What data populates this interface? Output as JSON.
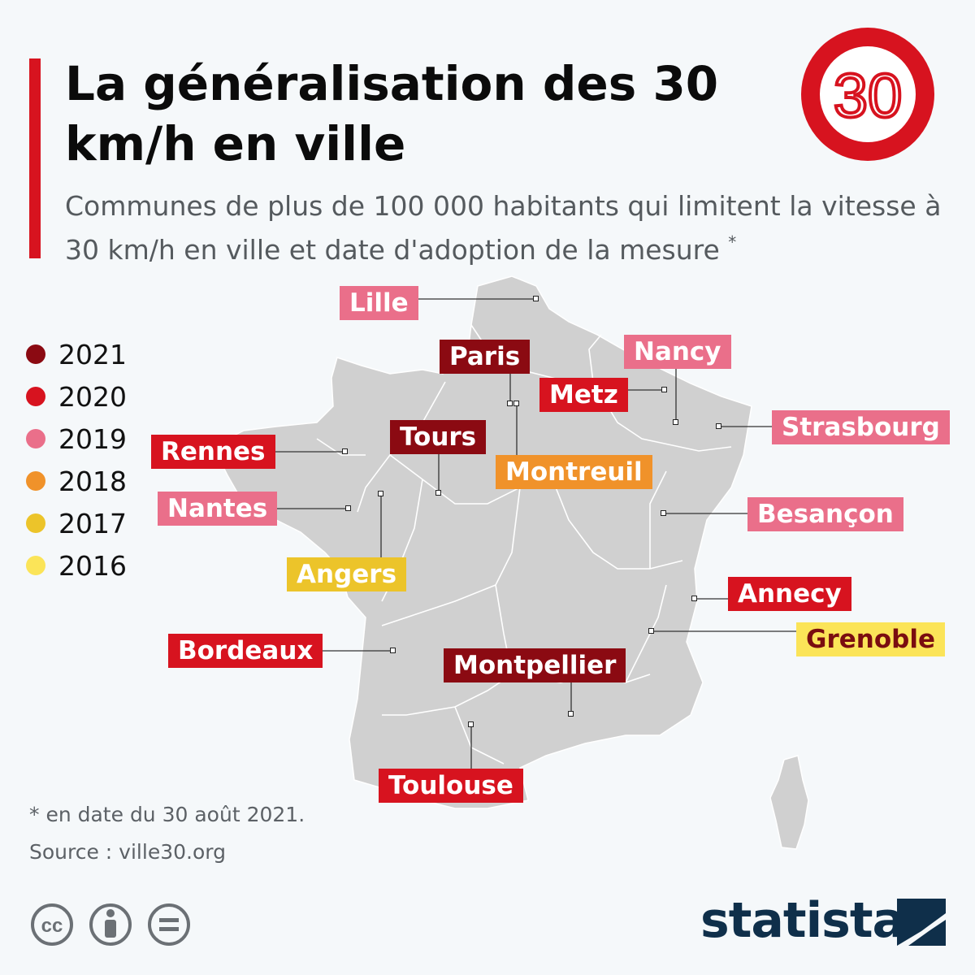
{
  "title": "La généralisation des 30 km/h en ville",
  "subtitle": "Communes de plus de 100 000 habitants qui limitent la vitesse à 30 km/h en ville et date d'adoption de la mesure",
  "subtitle_asterisk": "*",
  "speed_sign": {
    "value": "30"
  },
  "legend": [
    {
      "year": "2021",
      "color": "#8b0a12"
    },
    {
      "year": "2020",
      "color": "#d7131f"
    },
    {
      "year": "2019",
      "color": "#ea6f8a"
    },
    {
      "year": "2018",
      "color": "#f0922a"
    },
    {
      "year": "2017",
      "color": "#ecc42a"
    },
    {
      "year": "2016",
      "color": "#fbe458"
    }
  ],
  "cities": [
    {
      "name": "Lille",
      "year": "2019"
    },
    {
      "name": "Paris",
      "year": "2021"
    },
    {
      "name": "Nancy",
      "year": "2019"
    },
    {
      "name": "Metz",
      "year": "2020"
    },
    {
      "name": "Strasbourg",
      "year": "2019"
    },
    {
      "name": "Rennes",
      "year": "2020"
    },
    {
      "name": "Tours",
      "year": "2021"
    },
    {
      "name": "Montreuil",
      "year": "2018"
    },
    {
      "name": "Nantes",
      "year": "2019"
    },
    {
      "name": "Besançon",
      "year": "2019"
    },
    {
      "name": "Angers",
      "year": "2017"
    },
    {
      "name": "Annecy",
      "year": "2020"
    },
    {
      "name": "Grenoble",
      "year": "2016"
    },
    {
      "name": "Bordeaux",
      "year": "2020"
    },
    {
      "name": "Montpellier",
      "year": "2021"
    },
    {
      "name": "Toulouse",
      "year": "2020"
    }
  ],
  "footnote": "* en date du 30 août 2021.",
  "source": "Source : ville30.org",
  "license_icons": [
    "cc-icon",
    "by-icon",
    "nd-icon"
  ],
  "brand": "statista"
}
